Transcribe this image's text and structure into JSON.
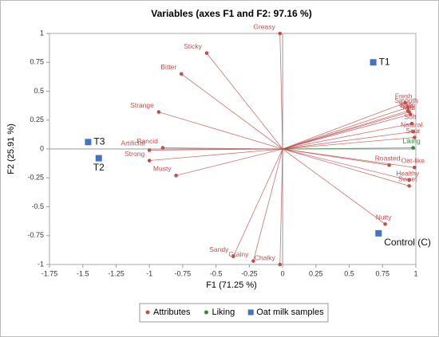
{
  "chart_data": {
    "type": "scatter",
    "title": "Variables (axes F1 and F2: 97.16 %)",
    "x_label": "F1 (71.25 %)",
    "y_label": "F2 (25.91 %)",
    "xlim": [
      -1.75,
      1
    ],
    "ylim": [
      -1,
      1
    ],
    "xticks": [
      -1.75,
      -1.5,
      -1.25,
      -1,
      -0.75,
      -0.5,
      -0.25,
      0,
      0.25,
      0.5,
      0.75,
      1
    ],
    "yticks": [
      -1,
      -0.75,
      -0.5,
      -0.25,
      0,
      0.25,
      0.5,
      0.75,
      1
    ],
    "series": [
      {
        "name": "Attributes",
        "color": "#c0504d",
        "marker": "circle",
        "vectors": true,
        "labels": [
          "Greasy",
          "Sticky",
          "Bitter",
          "Strange",
          "Rancid",
          "Artificial",
          "Strong",
          "Musty",
          "Sandy",
          "Grainy",
          "Chalky",
          "Nutty",
          "Fresh",
          "Smooth",
          "Salty",
          "Easy",
          "Mild",
          "Soft",
          "Natural",
          "Sour",
          "Roasted",
          "Oat-like",
          "Healthy",
          "Sweet"
        ],
        "x": [
          -0.02,
          -0.57,
          -0.76,
          -0.93,
          -0.9,
          -1.0,
          -1.0,
          -0.8,
          -0.37,
          -0.22,
          -0.02,
          0.77,
          0.92,
          0.94,
          0.94,
          0.95,
          0.96,
          0.97,
          0.98,
          0.99,
          0.8,
          0.99,
          0.95,
          0.95
        ],
        "y": [
          1.0,
          0.83,
          0.65,
          0.32,
          0.01,
          -0.01,
          -0.1,
          -0.23,
          -0.93,
          -0.97,
          -1.0,
          -0.65,
          0.4,
          0.36,
          0.33,
          0.32,
          0.3,
          0.22,
          0.15,
          0.1,
          -0.14,
          -0.16,
          -0.27,
          -0.32
        ]
      },
      {
        "name": "Liking",
        "color": "#2e8b3e",
        "marker": "circle",
        "vectors": true,
        "labels": [
          "Liking"
        ],
        "x": [
          0.98
        ],
        "y": [
          0.01
        ]
      },
      {
        "name": "Oat milk samples",
        "color": "#4472c4",
        "marker": "square",
        "vectors": false,
        "labels": [
          "T1",
          "T3",
          "T2",
          "Control (C)"
        ],
        "x": [
          0.68,
          -1.46,
          -1.38,
          0.72
        ],
        "y": [
          0.75,
          0.06,
          -0.08,
          -0.73
        ]
      }
    ]
  }
}
